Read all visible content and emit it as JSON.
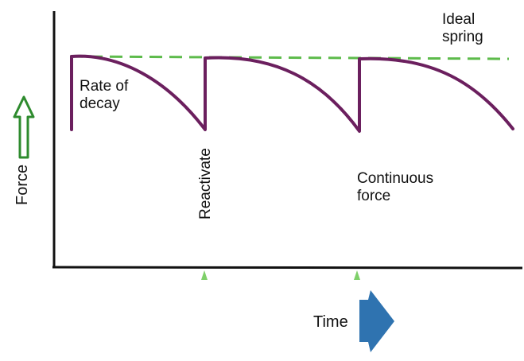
{
  "labels": {
    "ideal_spring": "Ideal spring",
    "rate_of_decay": "Rate of decay",
    "reactivate": "Reactivate",
    "continuous_force": "Continuous force",
    "force_axis": "Force",
    "time_axis": "Time"
  },
  "colors": {
    "axis": "#111111",
    "force_curve": "#6b1f5e",
    "ideal_line": "#5dbb4b",
    "force_arrow": "#2e8b2e",
    "time_arrow": "#2f73b0",
    "reactivation_marker": "#7fd06a"
  }
}
